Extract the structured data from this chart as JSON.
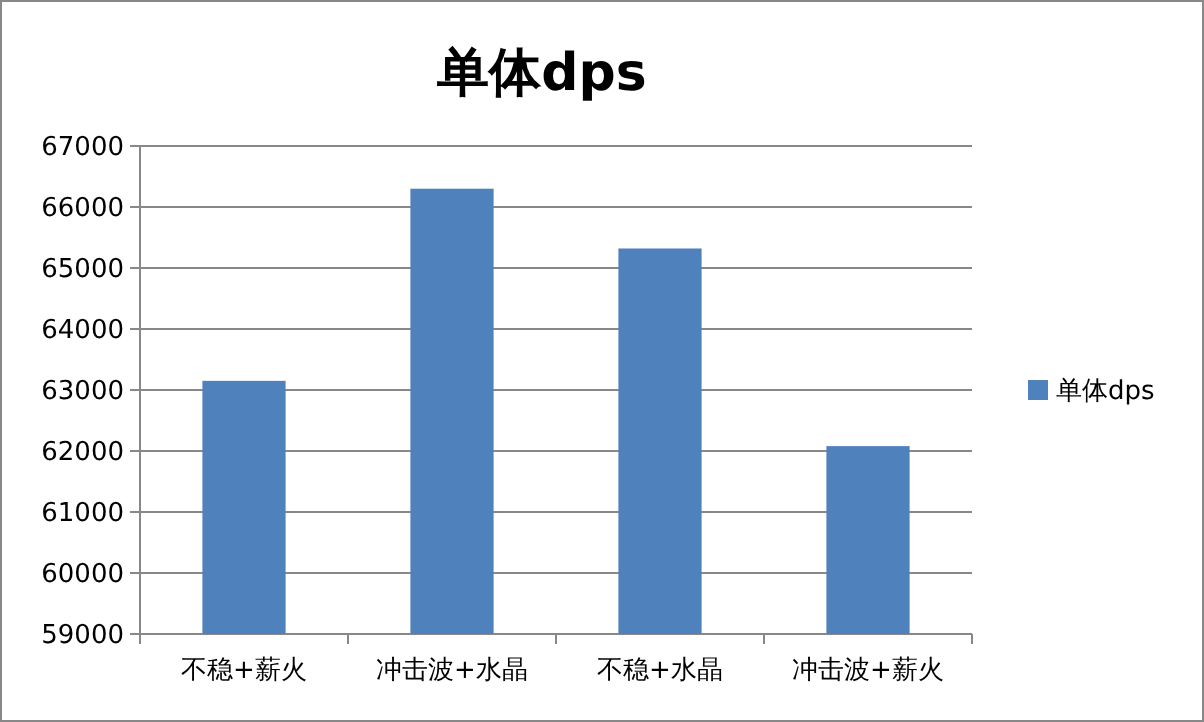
{
  "chart_data": {
    "type": "bar",
    "title": "单体dps",
    "categories": [
      "不稳+薪火",
      "冲击波+水晶",
      "不稳+水晶",
      "冲击波+薪火"
    ],
    "series": [
      {
        "name": "单体dps",
        "color": "#4f81bd",
        "values": [
          63150,
          66300,
          65320,
          62080
        ]
      }
    ],
    "ylim": [
      59000,
      67000
    ],
    "yticks": [
      59000,
      60000,
      61000,
      62000,
      63000,
      64000,
      65000,
      66000,
      67000
    ],
    "grid": "y",
    "legend": "right"
  }
}
